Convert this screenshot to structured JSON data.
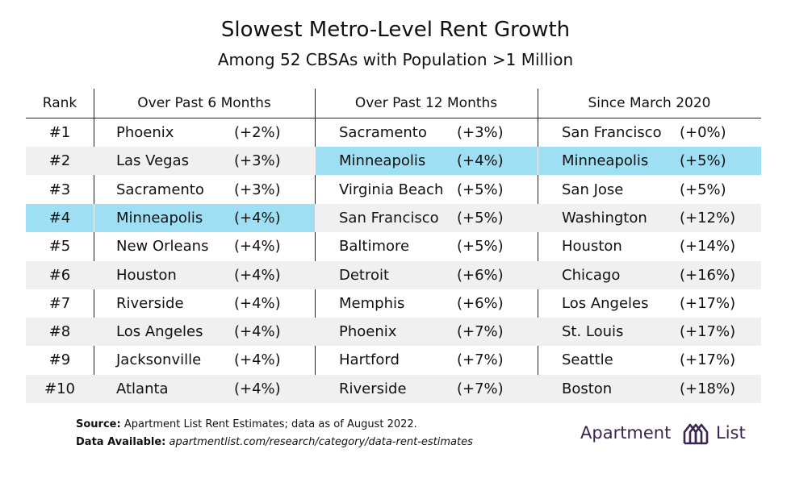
{
  "title": "Slowest Metro-Level Rent Growth",
  "subtitle": "Among 52 CBSAs with Population >1 Million",
  "colors": {
    "highlight": "#9edff3",
    "band": "#f0f0f0",
    "brand": "#3a2550"
  },
  "chart_data": {
    "type": "table",
    "columns": [
      "Rank",
      "Over Past 6 Months",
      "Over Past 12 Months",
      "Since March 2020"
    ],
    "rows": [
      {
        "rank": "#1",
        "m6": {
          "city": "Phoenix",
          "val": "(+2%)"
        },
        "m12": {
          "city": "Sacramento",
          "val": "(+3%)"
        },
        "mar": {
          "city": "San Francisco",
          "val": "(+0%)"
        }
      },
      {
        "rank": "#2",
        "m6": {
          "city": "Las Vegas",
          "val": "(+3%)"
        },
        "m12": {
          "city": "Minneapolis",
          "val": "(+4%)"
        },
        "mar": {
          "city": "Minneapolis",
          "val": "(+5%)"
        }
      },
      {
        "rank": "#3",
        "m6": {
          "city": "Sacramento",
          "val": "(+3%)"
        },
        "m12": {
          "city": "Virginia Beach",
          "val": "(+5%)"
        },
        "mar": {
          "city": "San Jose",
          "val": "(+5%)"
        }
      },
      {
        "rank": "#4",
        "m6": {
          "city": "Minneapolis",
          "val": "(+4%)"
        },
        "m12": {
          "city": "San Francisco",
          "val": "(+5%)"
        },
        "mar": {
          "city": "Washington",
          "val": "(+12%)"
        }
      },
      {
        "rank": "#5",
        "m6": {
          "city": "New Orleans",
          "val": "(+4%)"
        },
        "m12": {
          "city": "Baltimore",
          "val": "(+5%)"
        },
        "mar": {
          "city": "Houston",
          "val": "(+14%)"
        }
      },
      {
        "rank": "#6",
        "m6": {
          "city": "Houston",
          "val": "(+4%)"
        },
        "m12": {
          "city": "Detroit",
          "val": "(+6%)"
        },
        "mar": {
          "city": "Chicago",
          "val": "(+16%)"
        }
      },
      {
        "rank": "#7",
        "m6": {
          "city": "Riverside",
          "val": "(+4%)"
        },
        "m12": {
          "city": "Memphis",
          "val": "(+6%)"
        },
        "mar": {
          "city": "Los Angeles",
          "val": "(+17%)"
        }
      },
      {
        "rank": "#8",
        "m6": {
          "city": "Los Angeles",
          "val": "(+4%)"
        },
        "m12": {
          "city": "Phoenix",
          "val": "(+7%)"
        },
        "mar": {
          "city": "St. Louis",
          "val": "(+17%)"
        }
      },
      {
        "rank": "#9",
        "m6": {
          "city": "Jacksonville",
          "val": "(+4%)"
        },
        "m12": {
          "city": "Hartford",
          "val": "(+7%)"
        },
        "mar": {
          "city": "Seattle",
          "val": "(+17%)"
        }
      },
      {
        "rank": "#10",
        "m6": {
          "city": "Atlanta",
          "val": "(+4%)"
        },
        "m12": {
          "city": "Riverside",
          "val": "(+7%)"
        },
        "mar": {
          "city": "Boston",
          "val": "(+18%)"
        }
      }
    ],
    "highlighted": "Minneapolis"
  },
  "footer": {
    "source_label": "Source:",
    "source_text": "Apartment List Rent Estimates; data as of August 2022.",
    "data_label": "Data Available:",
    "data_text": "apartmentlist.com/research/category/data-rent-estimates"
  },
  "logo": {
    "word1": "Apartment",
    "word2": "List",
    "icon": "apartment-list-logo-icon"
  }
}
